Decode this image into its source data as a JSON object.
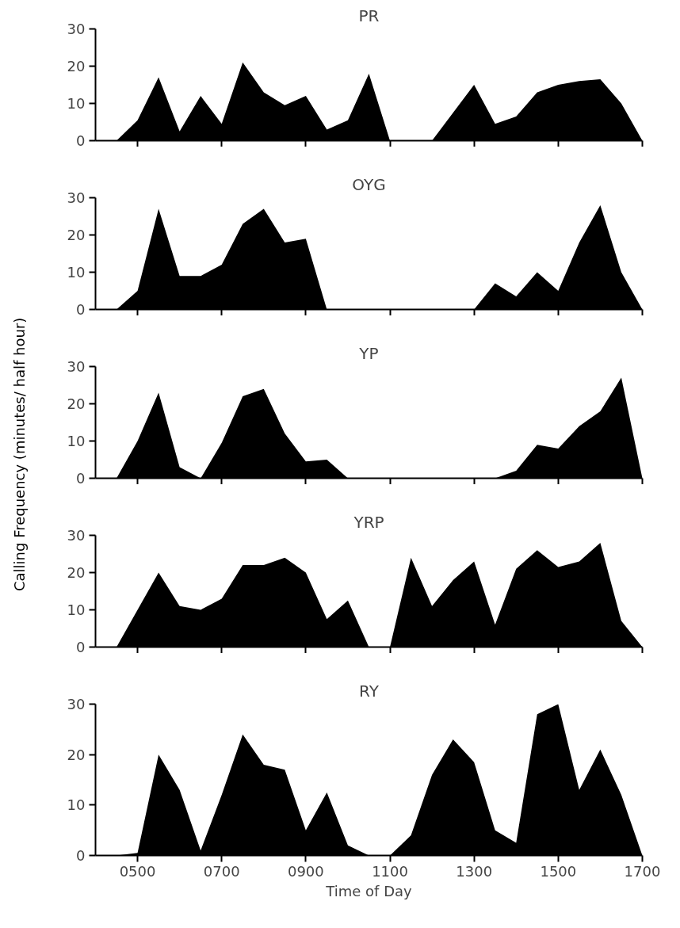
{
  "chart_data": [
    {
      "type": "area",
      "title": "PR",
      "color": "#000000",
      "categories": [
        null,
        null,
        "0500",
        null,
        null,
        null,
        "0700",
        null,
        null,
        null,
        "0900",
        null,
        null,
        null,
        "1100",
        null,
        null,
        null,
        "1300",
        null,
        null,
        null,
        "1500",
        null,
        null,
        null,
        "1700"
      ],
      "values": [
        0,
        0,
        5.5,
        17,
        2.5,
        12,
        4.5,
        21,
        13,
        9.5,
        12,
        3,
        5.5,
        18,
        0,
        0,
        0,
        7.5,
        15,
        4.5,
        6.5,
        13,
        15,
        16,
        16.5,
        10,
        0
      ],
      "ylim": [
        0,
        30
      ],
      "yticks": [
        0,
        10,
        20,
        30
      ],
      "tick_labels": "y"
    },
    {
      "type": "area",
      "title": "OYG",
      "color": "#000000",
      "categories": [
        null,
        null,
        "0500",
        null,
        null,
        null,
        "0700",
        null,
        null,
        null,
        "0900",
        null,
        null,
        null,
        "1100",
        null,
        null,
        null,
        "1300",
        null,
        null,
        null,
        "1500",
        null,
        null,
        null,
        "1700"
      ],
      "values": [
        0,
        0,
        5,
        27,
        9,
        9,
        12,
        23,
        27,
        18,
        19,
        0,
        0,
        0,
        0,
        0,
        0,
        0,
        0,
        7,
        3.5,
        10,
        5,
        18,
        28,
        10,
        0
      ],
      "ylim": [
        0,
        30
      ],
      "yticks": [
        0,
        10,
        20,
        30
      ],
      "tick_labels": "y"
    },
    {
      "type": "area",
      "title": "YP",
      "ylabel": "Calling Frequency (minutes/ half hour)",
      "color": "#000000",
      "categories": [
        null,
        null,
        "0500",
        null,
        null,
        null,
        "0700",
        null,
        null,
        null,
        "0900",
        null,
        null,
        null,
        "1100",
        null,
        null,
        null,
        "1300",
        null,
        null,
        null,
        "1500",
        null,
        null,
        null,
        "1700"
      ],
      "values": [
        0,
        0,
        10,
        23,
        3,
        0,
        9.5,
        22,
        24,
        12,
        4.5,
        5,
        0,
        0,
        0,
        0,
        0,
        0,
        0,
        0,
        2,
        9,
        8,
        14,
        18,
        27,
        0
      ],
      "ylim": [
        0,
        30
      ],
      "yticks": [
        0,
        10,
        20,
        30
      ],
      "tick_labels": "y"
    },
    {
      "type": "area",
      "title": "YRP",
      "color": "#000000",
      "categories": [
        null,
        null,
        "0500",
        null,
        null,
        null,
        "0700",
        null,
        null,
        null,
        "0900",
        null,
        null,
        null,
        "1100",
        null,
        null,
        null,
        "1300",
        null,
        null,
        null,
        "1500",
        null,
        null,
        null,
        "1700"
      ],
      "values": [
        0,
        0,
        10,
        20,
        11,
        10,
        13,
        22,
        22,
        24,
        20,
        7.5,
        12.5,
        0,
        0,
        24,
        11,
        18,
        23,
        6,
        21,
        26,
        21.5,
        23,
        28,
        7,
        0
      ],
      "ylim": [
        0,
        30
      ],
      "yticks": [
        0,
        10,
        20,
        30
      ],
      "tick_labels": "y"
    },
    {
      "type": "area",
      "title": "RY",
      "xlabel": "Time of Day",
      "color": "#000000",
      "categories": [
        null,
        null,
        "0500",
        null,
        null,
        null,
        "0700",
        null,
        null,
        null,
        "0900",
        null,
        null,
        null,
        "1100",
        null,
        null,
        null,
        "1300",
        null,
        null,
        null,
        "1500",
        null,
        null,
        null,
        "1700"
      ],
      "values": [
        0,
        0,
        0.5,
        20,
        13,
        1,
        12,
        24,
        18,
        17,
        5,
        12.5,
        2,
        0,
        0,
        4,
        16,
        23,
        18.5,
        5,
        2.5,
        28,
        30,
        13,
        21,
        12,
        0
      ],
      "ylim": [
        0,
        30
      ],
      "yticks": [
        0,
        10,
        20,
        30
      ]
    }
  ]
}
